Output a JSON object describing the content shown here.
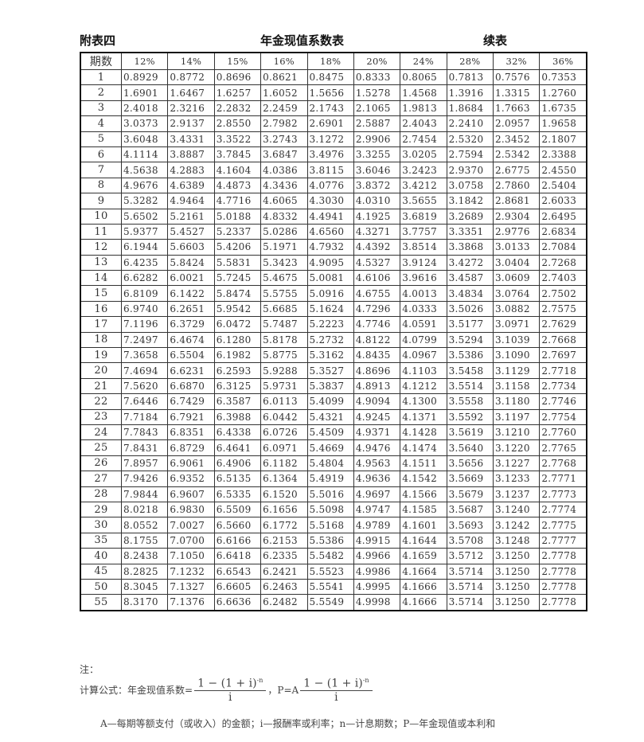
{
  "header": {
    "left": "附表四",
    "center": "年金现值系数表",
    "right": "续表"
  },
  "table": {
    "columns": [
      "期数",
      "12%",
      "14%",
      "15%",
      "16%",
      "18%",
      "20%",
      "24%",
      "28%",
      "32%",
      "36%"
    ],
    "rows": [
      [
        "1",
        "0.8929",
        "0.8772",
        "0.8696",
        "0.8621",
        "0.8475",
        "0.8333",
        "0.8065",
        "0.7813",
        "0.7576",
        "0.7353"
      ],
      [
        "2",
        "1.6901",
        "1.6467",
        "1.6257",
        "1.6052",
        "1.5656",
        "1.5278",
        "1.4568",
        "1.3916",
        "1.3315",
        "1.2760"
      ],
      [
        "3",
        "2.4018",
        "2.3216",
        "2.2832",
        "2.2459",
        "2.1743",
        "2.1065",
        "1.9813",
        "1.8684",
        "1.7663",
        "1.6735"
      ],
      [
        "4",
        "3.0373",
        "2.9137",
        "2.8550",
        "2.7982",
        "2.6901",
        "2.5887",
        "2.4043",
        "2.2410",
        "2.0957",
        "1.9658"
      ],
      [
        "5",
        "3.6048",
        "3.4331",
        "3.3522",
        "3.2743",
        "3.1272",
        "2.9906",
        "2.7454",
        "2.5320",
        "2.3452",
        "2.1807"
      ],
      [
        "6",
        "4.1114",
        "3.8887",
        "3.7845",
        "3.6847",
        "3.4976",
        "3.3255",
        "3.0205",
        "2.7594",
        "2.5342",
        "2.3388"
      ],
      [
        "7",
        "4.5638",
        "4.2883",
        "4.1604",
        "4.0386",
        "3.8115",
        "3.6046",
        "3.2423",
        "2.9370",
        "2.6775",
        "2.4550"
      ],
      [
        "8",
        "4.9676",
        "4.6389",
        "4.4873",
        "4.3436",
        "4.0776",
        "3.8372",
        "3.4212",
        "3.0758",
        "2.7860",
        "2.5404"
      ],
      [
        "9",
        "5.3282",
        "4.9464",
        "4.7716",
        "4.6065",
        "4.3030",
        "4.0310",
        "3.5655",
        "3.1842",
        "2.8681",
        "2.6033"
      ],
      [
        "10",
        "5.6502",
        "5.2161",
        "5.0188",
        "4.8332",
        "4.4941",
        "4.1925",
        "3.6819",
        "3.2689",
        "2.9304",
        "2.6495"
      ],
      [
        "11",
        "5.9377",
        "5.4527",
        "5.2337",
        "5.0286",
        "4.6560",
        "4.3271",
        "3.7757",
        "3.3351",
        "2.9776",
        "2.6834"
      ],
      [
        "12",
        "6.1944",
        "5.6603",
        "5.4206",
        "5.1971",
        "4.7932",
        "4.4392",
        "3.8514",
        "3.3868",
        "3.0133",
        "2.7084"
      ],
      [
        "13",
        "6.4235",
        "5.8424",
        "5.5831",
        "5.3423",
        "4.9095",
        "4.5327",
        "3.9124",
        "3.4272",
        "3.0404",
        "2.7268"
      ],
      [
        "14",
        "6.6282",
        "6.0021",
        "5.7245",
        "5.4675",
        "5.0081",
        "4.6106",
        "3.9616",
        "3.4587",
        "3.0609",
        "2.7403"
      ],
      [
        "15",
        "6.8109",
        "6.1422",
        "5.8474",
        "5.5755",
        "5.0916",
        "4.6755",
        "4.0013",
        "3.4834",
        "3.0764",
        "2.7502"
      ],
      [
        "16",
        "6.9740",
        "6.2651",
        "5.9542",
        "5.6685",
        "5.1624",
        "4.7296",
        "4.0333",
        "3.5026",
        "3.0882",
        "2.7575"
      ],
      [
        "17",
        "7.1196",
        "6.3729",
        "6.0472",
        "5.7487",
        "5.2223",
        "4.7746",
        "4.0591",
        "3.5177",
        "3.0971",
        "2.7629"
      ],
      [
        "18",
        "7.2497",
        "6.4674",
        "6.1280",
        "5.8178",
        "5.2732",
        "4.8122",
        "4.0799",
        "3.5294",
        "3.1039",
        "2.7668"
      ],
      [
        "19",
        "7.3658",
        "6.5504",
        "6.1982",
        "5.8775",
        "5.3162",
        "4.8435",
        "4.0967",
        "3.5386",
        "3.1090",
        "2.7697"
      ],
      [
        "20",
        "7.4694",
        "6.6231",
        "6.2593",
        "5.9288",
        "5.3527",
        "4.8696",
        "4.1103",
        "3.5458",
        "3.1129",
        "2.7718"
      ],
      [
        "21",
        "7.5620",
        "6.6870",
        "6.3125",
        "5.9731",
        "5.3837",
        "4.8913",
        "4.1212",
        "3.5514",
        "3.1158",
        "2.7734"
      ],
      [
        "22",
        "7.6446",
        "6.7429",
        "6.3587",
        "6.0113",
        "5.4099",
        "4.9094",
        "4.1300",
        "3.5558",
        "3.1180",
        "2.7746"
      ],
      [
        "23",
        "7.7184",
        "6.7921",
        "6.3988",
        "6.0442",
        "5.4321",
        "4.9245",
        "4.1371",
        "3.5592",
        "3.1197",
        "2.7754"
      ],
      [
        "24",
        "7.7843",
        "6.8351",
        "6.4338",
        "6.0726",
        "5.4509",
        "4.9371",
        "4.1428",
        "3.5619",
        "3.1210",
        "2.7760"
      ],
      [
        "25",
        "7.8431",
        "6.8729",
        "6.4641",
        "6.0971",
        "5.4669",
        "4.9476",
        "4.1474",
        "3.5640",
        "3.1220",
        "2.7765"
      ],
      [
        "26",
        "7.8957",
        "6.9061",
        "6.4906",
        "6.1182",
        "5.4804",
        "4.9563",
        "4.1511",
        "3.5656",
        "3.1227",
        "2.7768"
      ],
      [
        "27",
        "7.9426",
        "6.9352",
        "6.5135",
        "6.1364",
        "5.4919",
        "4.9636",
        "4.1542",
        "3.5669",
        "3.1233",
        "2.7771"
      ],
      [
        "28",
        "7.9844",
        "6.9607",
        "6.5335",
        "6.1520",
        "5.5016",
        "4.9697",
        "4.1566",
        "3.5679",
        "3.1237",
        "2.7773"
      ],
      [
        "29",
        "8.0218",
        "6.9830",
        "6.5509",
        "6.1656",
        "5.5098",
        "4.9747",
        "4.1585",
        "3.5687",
        "3.1240",
        "2.7774"
      ],
      [
        "30",
        "8.0552",
        "7.0027",
        "6.5660",
        "6.1772",
        "5.5168",
        "4.9789",
        "4.1601",
        "3.5693",
        "3.1242",
        "2.7775"
      ],
      [
        "35",
        "8.1755",
        "7.0700",
        "6.6166",
        "6.2153",
        "5.5386",
        "4.9915",
        "4.1644",
        "3.5708",
        "3.1248",
        "2.7777"
      ],
      [
        "40",
        "8.2438",
        "7.1050",
        "6.6418",
        "6.2335",
        "5.5482",
        "4.9966",
        "4.1659",
        "3.5712",
        "3.1250",
        "2.7778"
      ],
      [
        "45",
        "8.2825",
        "7.1232",
        "6.6543",
        "6.2421",
        "5.5523",
        "4.9986",
        "4.1664",
        "3.5714",
        "3.1250",
        "2.7778"
      ],
      [
        "50",
        "8.3045",
        "7.1327",
        "6.6605",
        "6.2463",
        "5.5541",
        "4.9995",
        "4.1666",
        "3.5714",
        "3.1250",
        "2.7778"
      ],
      [
        "55",
        "8.3170",
        "7.1376",
        "6.6636",
        "6.2482",
        "5.5549",
        "4.9998",
        "4.1666",
        "3.5714",
        "3.1250",
        "2.7778"
      ]
    ]
  },
  "notes": {
    "label": "注：",
    "formula_prefix": "计算公式：年金现值系数=",
    "numerator": "1 − (1 + i)",
    "exponent": "-n",
    "denominator": "i",
    "separator": "，",
    "p_prefix": "P=A",
    "legend": "A—每期等额支付（或收入）的金额；i—报酬率或利率；n—计息期数；P—年金现值或本利和"
  }
}
